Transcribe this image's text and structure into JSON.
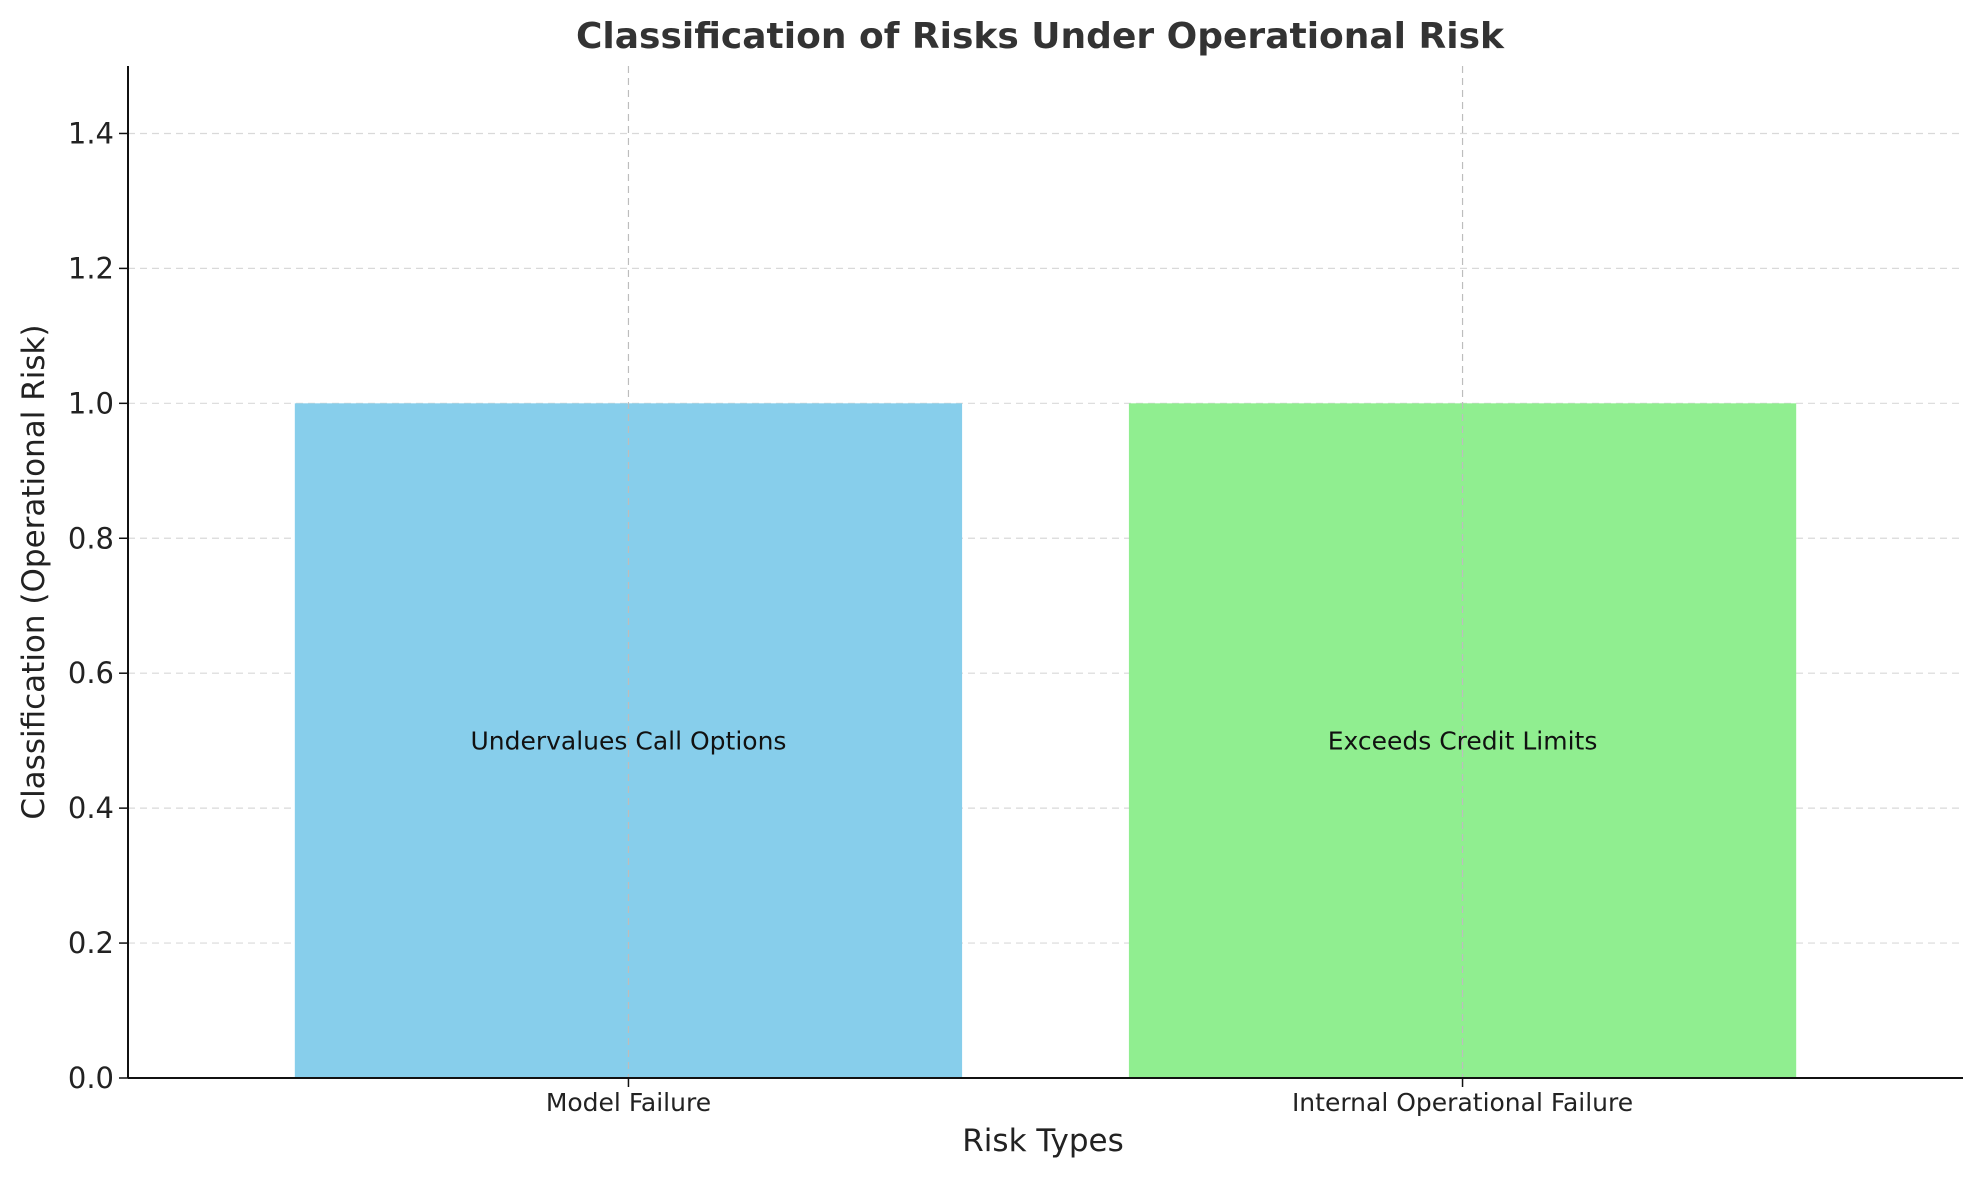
{
  "chart_data": {
    "type": "bar",
    "title": "Classification of Risks Under Operational Risk",
    "xlabel": "Risk Types",
    "ylabel": "Classification (Operational Risk)",
    "categories": [
      "Model Failure",
      "Internal Operational Failure"
    ],
    "values": [
      1,
      1
    ],
    "bar_labels": [
      "Undervalues Call Options",
      "Exceeds Credit Limits"
    ],
    "bar_colors": [
      "#87CEEB",
      "#90EE90"
    ],
    "ylim": [
      0,
      1.5
    ],
    "yticks": [
      0.0,
      0.2,
      0.4,
      0.6,
      0.8,
      1.0,
      1.2,
      1.4
    ],
    "ytick_labels": [
      "0.0",
      "0.2",
      "0.4",
      "0.6",
      "0.8",
      "1.0",
      "1.2",
      "1.4"
    ],
    "grid": true,
    "legend": false
  }
}
